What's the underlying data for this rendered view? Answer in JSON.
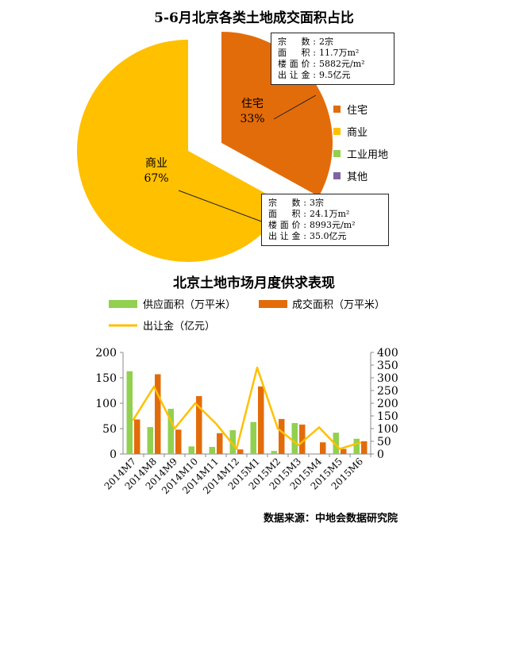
{
  "pie_chart": {
    "title": "5-6月北京各类土地成交面积占比",
    "slices": [
      {
        "name": "住宅",
        "percent_label": "33%",
        "value": 33,
        "color": "#E36C0A"
      },
      {
        "name": "商业",
        "percent_label": "67%",
        "value": 67,
        "color": "#FFC000"
      }
    ],
    "legend": [
      {
        "label": "住宅",
        "color": "#E36C0A"
      },
      {
        "label": "商业",
        "color": "#FFC000"
      },
      {
        "label": "工业用地",
        "color": "#92D050"
      },
      {
        "label": "其他",
        "color": "#8064A2"
      }
    ],
    "callouts": {
      "residential": {
        "zongshu_k": "宗　数:",
        "zongshu_v": "2宗",
        "mianji_k": "面　积:",
        "mianji_v": "11.7万m²",
        "loumian_k": "楼面价:",
        "loumian_v": "5882元/m²",
        "churang_k": "出让金:",
        "churang_v": "9.5亿元"
      },
      "commercial": {
        "zongshu_k": "宗　数:",
        "zongshu_v": "3宗",
        "mianji_k": "面　积:",
        "mianji_v": "24.1万m²",
        "loumian_k": "楼面价:",
        "loumian_v": "8993元/m²",
        "churang_k": "出让金:",
        "churang_v": "35.0亿元"
      }
    }
  },
  "chart_data": {
    "type": "bar",
    "title": "北京土地市场月度供求表现",
    "categories": [
      "2014M7",
      "2014M8",
      "2014M9",
      "2014M10",
      "2014M11",
      "2014M12",
      "2015M1",
      "2015M2",
      "2015M3",
      "2015M4",
      "2015M5",
      "2015M6"
    ],
    "series": [
      {
        "name": "供应面积（万平米）",
        "type": "bar",
        "axis": "left",
        "color": "#92D050",
        "values": [
          163,
          53,
          89,
          15,
          14,
          47,
          63,
          6,
          61,
          0,
          42,
          30
        ]
      },
      {
        "name": "成交面积（万平米）",
        "type": "bar",
        "axis": "left",
        "color": "#E36C0A",
        "values": [
          68,
          157,
          48,
          114,
          41,
          9,
          133,
          69,
          58,
          23,
          10,
          25
        ]
      },
      {
        "name": "出让金（亿元）",
        "type": "line",
        "axis": "right",
        "color": "#FFC000",
        "values": [
          135,
          265,
          100,
          200,
          120,
          20,
          340,
          100,
          35,
          105,
          20,
          45
        ]
      }
    ],
    "ylim_left": [
      0,
      200
    ],
    "ylim_right": [
      0,
      400
    ],
    "yticks_left": [
      0,
      50,
      100,
      150,
      200
    ],
    "yticks_right": [
      0,
      50,
      100,
      150,
      200,
      250,
      300,
      350,
      400
    ],
    "legend_position": "top"
  },
  "source": "数据来源：中地会数据研究院"
}
